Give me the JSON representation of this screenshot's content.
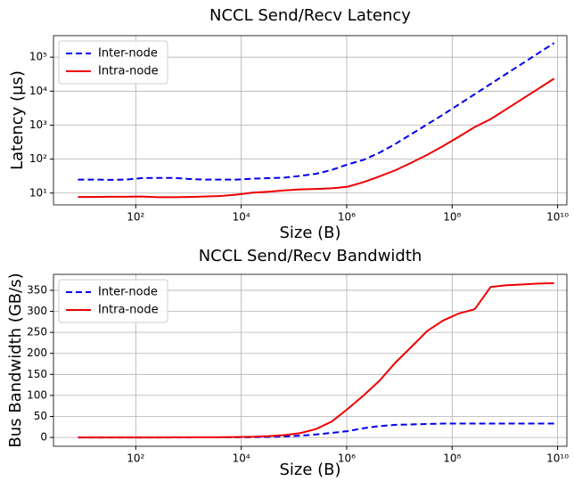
{
  "chart_data": [
    {
      "type": "line",
      "title": "NCCL Send/Recv Latency",
      "x_label": "Size (B)",
      "y_label": "Latency (µs)",
      "xscale": "log",
      "yscale": "log",
      "grid": true,
      "legend": "upper left",
      "x": [
        8,
        16,
        32,
        64,
        128,
        256,
        512,
        1024,
        2048,
        4096,
        8192,
        16384,
        32768,
        65536,
        131072,
        262144,
        524288,
        1048576,
        2097152,
        4194304,
        8388608,
        16777216,
        33554432,
        67108864,
        134217728,
        268435456,
        536870912,
        1073741824,
        2147483648,
        4294967296,
        8589934592
      ],
      "xlim": [
        2.75,
        15000000000
      ],
      "xticks": [
        {
          "value": 100,
          "label": "10²"
        },
        {
          "value": 10000,
          "label": "10⁴"
        },
        {
          "value": 1000000,
          "label": "10⁶"
        },
        {
          "value": 100000000,
          "label": "10⁸"
        },
        {
          "value": 10000000000,
          "label": "10¹⁰"
        }
      ],
      "ylim": [
        4.5,
        430000
      ],
      "yticks": [
        {
          "value": 10,
          "label": "10¹"
        },
        {
          "value": 100,
          "label": "10²"
        },
        {
          "value": 1000,
          "label": "10³"
        },
        {
          "value": 10000,
          "label": "10⁴"
        },
        {
          "value": 100000,
          "label": "10⁵"
        }
      ],
      "series": [
        {
          "name": "Inter-node",
          "color": "#0000ee",
          "linestyle": "dashed",
          "values": [
            25,
            25,
            24.5,
            25,
            27.5,
            28,
            28,
            26,
            25,
            25,
            25,
            26.5,
            27.5,
            28.5,
            32,
            37,
            48,
            70,
            95,
            155,
            280,
            541,
            1049,
            2033,
            4067,
            8134,
            16269,
            32538,
            65076,
            130150,
            260300
          ]
        },
        {
          "name": "Intra-node",
          "color": "#ee0000",
          "linestyle": "solid",
          "values": [
            7.7,
            7.7,
            7.8,
            7.8,
            7.9,
            7.6,
            7.6,
            7.7,
            7.9,
            8.2,
            9,
            10.3,
            11,
            12,
            12.8,
            13.2,
            13.8,
            15.4,
            21,
            31,
            47,
            78,
            133,
            241,
            455,
            880,
            1500,
            2966,
            5900,
            11736,
            23400
          ]
        }
      ]
    },
    {
      "type": "line",
      "title": "NCCL Send/Recv Bandwidth",
      "x_label": "Size (B)",
      "y_label": "Bus Bandwidth (GB/s)",
      "xscale": "log",
      "yscale": "linear",
      "grid": true,
      "legend": "upper left",
      "x": [
        8,
        16,
        32,
        64,
        128,
        256,
        512,
        1024,
        2048,
        4096,
        8192,
        16384,
        32768,
        65536,
        131072,
        262144,
        524288,
        1048576,
        2097152,
        4194304,
        8388608,
        16777216,
        33554432,
        67108864,
        134217728,
        268435456,
        536870912,
        1073741824,
        2147483648,
        4294967296,
        8589934592
      ],
      "xlim": [
        2.75,
        15000000000
      ],
      "xticks": [
        {
          "value": 100,
          "label": "10²"
        },
        {
          "value": 10000,
          "label": "10⁴"
        },
        {
          "value": 1000000,
          "label": "10⁶"
        },
        {
          "value": 100000000,
          "label": "10⁸"
        },
        {
          "value": 10000000000,
          "label": "10¹⁰"
        }
      ],
      "ylim": [
        -21,
        388
      ],
      "yticks": [
        0,
        50,
        100,
        150,
        200,
        250,
        300,
        350
      ],
      "series": [
        {
          "name": "Inter-node",
          "color": "#0000ee",
          "linestyle": "dashed",
          "values": [
            0,
            0,
            0,
            0,
            0.01,
            0.01,
            0.02,
            0.04,
            0.08,
            0.16,
            0.33,
            0.62,
            1.2,
            2.3,
            4.1,
            7.1,
            10.9,
            15,
            22,
            27,
            30,
            31,
            32,
            33,
            33,
            33,
            33,
            33,
            33,
            33,
            33
          ]
        },
        {
          "name": "Intra-node",
          "color": "#ee0000",
          "linestyle": "solid",
          "values": [
            0,
            0,
            0,
            0.01,
            0.02,
            0.03,
            0.07,
            0.13,
            0.26,
            0.5,
            0.91,
            1.6,
            3,
            5.5,
            10.2,
            19.9,
            38,
            68,
            100,
            135,
            178,
            215,
            253,
            278,
            295,
            305,
            358,
            362,
            364,
            366,
            367
          ]
        }
      ]
    }
  ]
}
